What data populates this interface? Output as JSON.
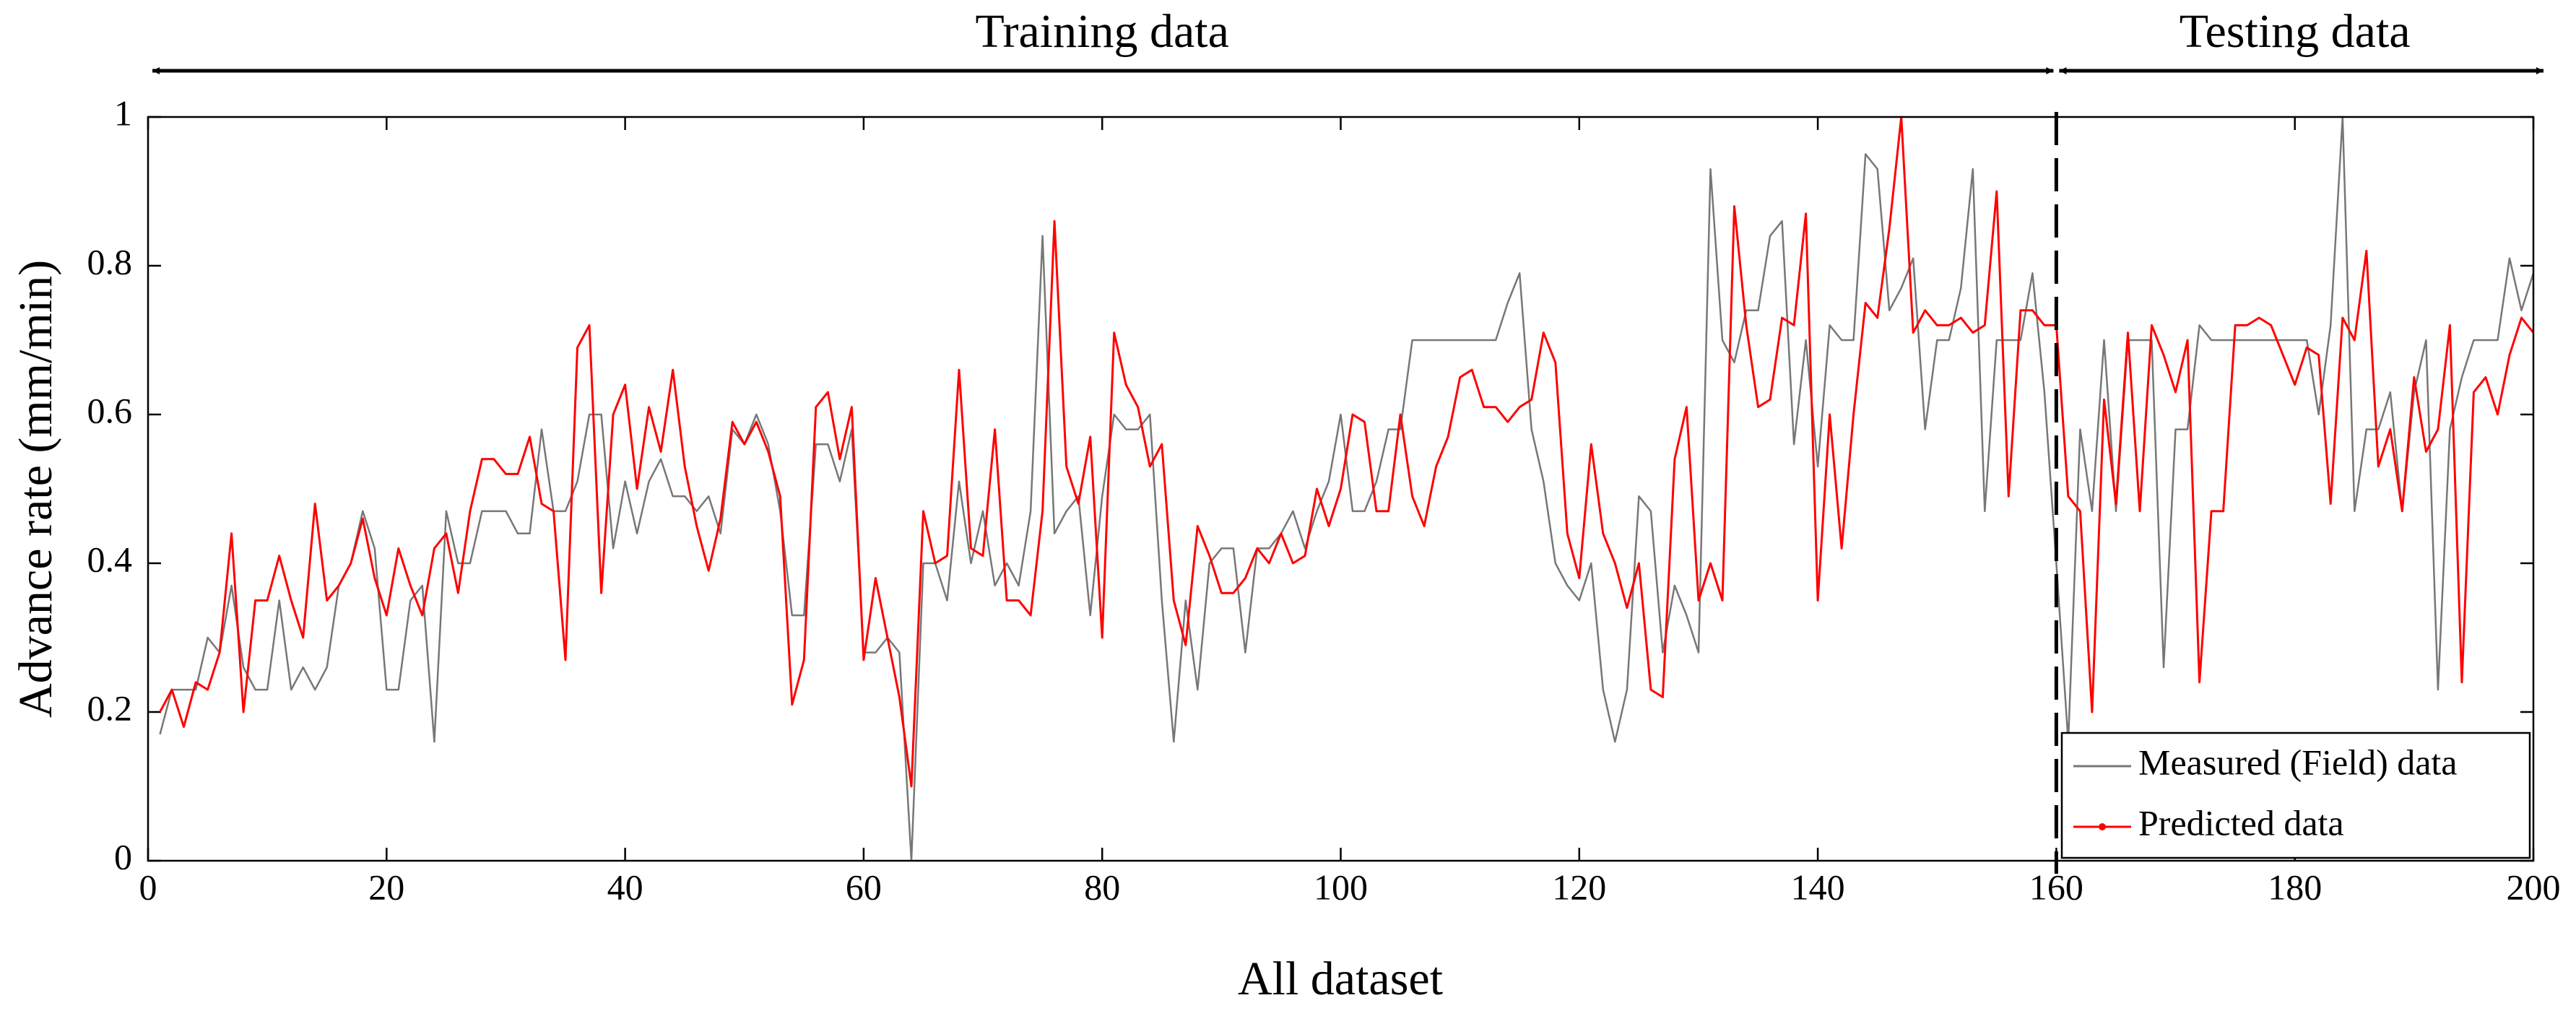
{
  "chart_data": {
    "type": "line",
    "xlabel": "All dataset",
    "ylabel": "Advance rate (mm/min)",
    "annotations": [
      "Training data",
      "Testing data"
    ],
    "split_x": 160,
    "legend": "lower right",
    "grid": false,
    "xlim": [
      0,
      200
    ],
    "xticks": [
      0,
      20,
      40,
      60,
      80,
      100,
      120,
      140,
      160,
      180,
      200
    ],
    "ylim": [
      0,
      1
    ],
    "yticks": [
      0,
      0.2,
      0.4,
      0.6,
      0.8,
      1
    ],
    "x": [
      1,
      2,
      3,
      4,
      5,
      6,
      7,
      8,
      9,
      10,
      11,
      12,
      13,
      14,
      15,
      16,
      17,
      18,
      19,
      20,
      21,
      22,
      23,
      24,
      25,
      26,
      27,
      28,
      29,
      30,
      31,
      32,
      33,
      34,
      35,
      36,
      37,
      38,
      39,
      40,
      41,
      42,
      43,
      44,
      45,
      46,
      47,
      48,
      49,
      50,
      51,
      52,
      53,
      54,
      55,
      56,
      57,
      58,
      59,
      60,
      61,
      62,
      63,
      64,
      65,
      66,
      67,
      68,
      69,
      70,
      71,
      72,
      73,
      74,
      75,
      76,
      77,
      78,
      79,
      80,
      81,
      82,
      83,
      84,
      85,
      86,
      87,
      88,
      89,
      90,
      91,
      92,
      93,
      94,
      95,
      96,
      97,
      98,
      99,
      100,
      101,
      102,
      103,
      104,
      105,
      106,
      107,
      108,
      109,
      110,
      111,
      112,
      113,
      114,
      115,
      116,
      117,
      118,
      119,
      120,
      121,
      122,
      123,
      124,
      125,
      126,
      127,
      128,
      129,
      130,
      131,
      132,
      133,
      134,
      135,
      136,
      137,
      138,
      139,
      140,
      141,
      142,
      143,
      144,
      145,
      146,
      147,
      148,
      149,
      150,
      151,
      152,
      153,
      154,
      155,
      156,
      157,
      158,
      159,
      160,
      161,
      162,
      163,
      164,
      165,
      166,
      167,
      168,
      169,
      170,
      171,
      172,
      173,
      174,
      175,
      176,
      177,
      178,
      179,
      180,
      181,
      182,
      183,
      184,
      185,
      186,
      187,
      188,
      189,
      190,
      191,
      192,
      193,
      194,
      195,
      196,
      197,
      198,
      199,
      200
    ],
    "series": [
      {
        "name": "Measured (Field) data",
        "color": "#777777",
        "values": [
          0.17,
          0.23,
          0.23,
          0.23,
          0.3,
          0.28,
          0.37,
          0.26,
          0.23,
          0.23,
          0.35,
          0.23,
          0.26,
          0.23,
          0.26,
          0.37,
          0.4,
          0.47,
          0.42,
          0.23,
          0.23,
          0.35,
          0.37,
          0.16,
          0.47,
          0.4,
          0.4,
          0.47,
          0.47,
          0.47,
          0.44,
          0.44,
          0.58,
          0.47,
          0.47,
          0.51,
          0.6,
          0.6,
          0.42,
          0.51,
          0.44,
          0.51,
          0.54,
          0.49,
          0.49,
          0.47,
          0.49,
          0.44,
          0.58,
          0.56,
          0.6,
          0.56,
          0.47,
          0.33,
          0.33,
          0.56,
          0.56,
          0.51,
          0.58,
          0.28,
          0.28,
          0.3,
          0.28,
          0.0,
          0.4,
          0.4,
          0.35,
          0.51,
          0.4,
          0.47,
          0.37,
          0.4,
          0.37,
          0.47,
          0.84,
          0.44,
          0.47,
          0.49,
          0.33,
          0.49,
          0.6,
          0.58,
          0.58,
          0.6,
          0.35,
          0.16,
          0.35,
          0.23,
          0.4,
          0.42,
          0.42,
          0.28,
          0.42,
          0.42,
          0.44,
          0.47,
          0.42,
          0.47,
          0.51,
          0.6,
          0.47,
          0.47,
          0.51,
          0.58,
          0.58,
          0.7,
          0.7,
          0.7,
          0.7,
          0.7,
          0.7,
          0.7,
          0.7,
          0.75,
          0.79,
          0.58,
          0.51,
          0.4,
          0.37,
          0.35,
          0.4,
          0.23,
          0.16,
          0.23,
          0.49,
          0.47,
          0.28,
          0.37,
          0.33,
          0.28,
          0.93,
          0.7,
          0.67,
          0.74,
          0.74,
          0.84,
          0.86,
          0.56,
          0.7,
          0.53,
          0.72,
          0.7,
          0.7,
          0.95,
          0.93,
          0.74,
          0.77,
          0.81,
          0.58,
          0.7,
          0.7,
          0.77,
          0.93,
          0.47,
          0.7,
          0.7,
          0.7,
          0.79,
          0.63,
          0.4,
          0.16,
          0.58,
          0.47,
          0.7,
          0.47,
          0.7,
          0.7,
          0.7,
          0.26,
          0.58,
          0.58,
          0.72,
          0.7,
          0.7,
          0.7,
          0.7,
          0.7,
          0.7,
          0.7,
          0.7,
          0.7,
          0.6,
          0.72,
          1.0,
          0.47,
          0.58,
          0.58,
          0.63,
          0.47,
          0.63,
          0.7,
          0.23,
          0.58,
          0.65,
          0.7,
          0.7,
          0.7,
          0.81,
          0.74,
          0.79
        ]
      },
      {
        "name": "Predicted data",
        "color": "#ff0000",
        "values": [
          0.2,
          0.23,
          0.18,
          0.24,
          0.23,
          0.28,
          0.44,
          0.2,
          0.35,
          0.35,
          0.41,
          0.35,
          0.3,
          0.48,
          0.35,
          0.37,
          0.4,
          0.46,
          0.38,
          0.33,
          0.42,
          0.37,
          0.33,
          0.42,
          0.44,
          0.36,
          0.47,
          0.54,
          0.54,
          0.52,
          0.52,
          0.57,
          0.48,
          0.47,
          0.27,
          0.69,
          0.72,
          0.36,
          0.6,
          0.64,
          0.5,
          0.61,
          0.55,
          0.66,
          0.53,
          0.45,
          0.39,
          0.46,
          0.59,
          0.56,
          0.59,
          0.55,
          0.49,
          0.21,
          0.27,
          0.61,
          0.63,
          0.54,
          0.61,
          0.27,
          0.38,
          0.3,
          0.22,
          0.1,
          0.47,
          0.4,
          0.41,
          0.66,
          0.42,
          0.41,
          0.58,
          0.35,
          0.35,
          0.33,
          0.47,
          0.86,
          0.53,
          0.48,
          0.57,
          0.3,
          0.71,
          0.64,
          0.61,
          0.53,
          0.56,
          0.35,
          0.29,
          0.45,
          0.41,
          0.36,
          0.36,
          0.38,
          0.42,
          0.4,
          0.44,
          0.4,
          0.41,
          0.5,
          0.45,
          0.5,
          0.6,
          0.59,
          0.47,
          0.47,
          0.6,
          0.49,
          0.45,
          0.53,
          0.57,
          0.65,
          0.66,
          0.61,
          0.61,
          0.59,
          0.61,
          0.62,
          0.71,
          0.67,
          0.44,
          0.38,
          0.56,
          0.44,
          0.4,
          0.34,
          0.4,
          0.23,
          0.22,
          0.54,
          0.61,
          0.35,
          0.4,
          0.35,
          0.88,
          0.72,
          0.61,
          0.62,
          0.73,
          0.72,
          0.87,
          0.35,
          0.6,
          0.42,
          0.6,
          0.75,
          0.73,
          0.85,
          1.0,
          0.71,
          0.74,
          0.72,
          0.72,
          0.73,
          0.71,
          0.72,
          0.9,
          0.49,
          0.74,
          0.74,
          0.72,
          0.72,
          0.49,
          0.47,
          0.2,
          0.62,
          0.48,
          0.71,
          0.47,
          0.72,
          0.68,
          0.63,
          0.7,
          0.24,
          0.47,
          0.47,
          0.72,
          0.72,
          0.73,
          0.72,
          0.68,
          0.64,
          0.69,
          0.68,
          0.48,
          0.73,
          0.7,
          0.82,
          0.53,
          0.58,
          0.47,
          0.65,
          0.55,
          0.58,
          0.72,
          0.24,
          0.63,
          0.65,
          0.6,
          0.68,
          0.73,
          0.71
        ]
      }
    ]
  }
}
